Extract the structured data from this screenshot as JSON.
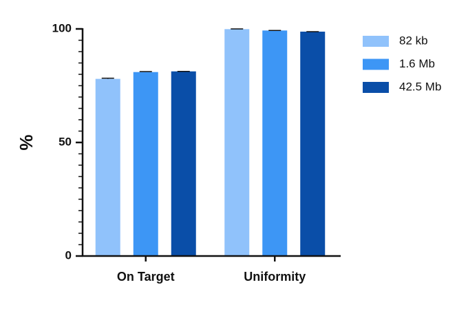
{
  "chart_data": {
    "type": "bar",
    "y_label": "%",
    "categories": [
      "On Target",
      "Uniformity"
    ],
    "series": [
      {
        "name": "82 kb",
        "color": "#90c2fb",
        "values": [
          78,
          99.9
        ],
        "errors": [
          0.3,
          0.1
        ]
      },
      {
        "name": "1.6 Mb",
        "color": "#3d96f5",
        "values": [
          81,
          99.3
        ],
        "errors": [
          0.2,
          0
        ]
      },
      {
        "name": "42.5 Mb",
        "color": "#0a4ea8",
        "values": [
          81.3,
          98.8
        ],
        "errors": [
          0,
          0
        ]
      }
    ],
    "ylim": [
      0,
      100
    ],
    "yticks": [
      0,
      50,
      100
    ],
    "yminorticks": [
      5,
      10,
      15,
      20,
      25,
      30,
      35,
      40,
      45,
      55,
      60,
      65,
      70,
      75,
      80,
      85,
      90,
      95
    ],
    "legend": "right"
  }
}
